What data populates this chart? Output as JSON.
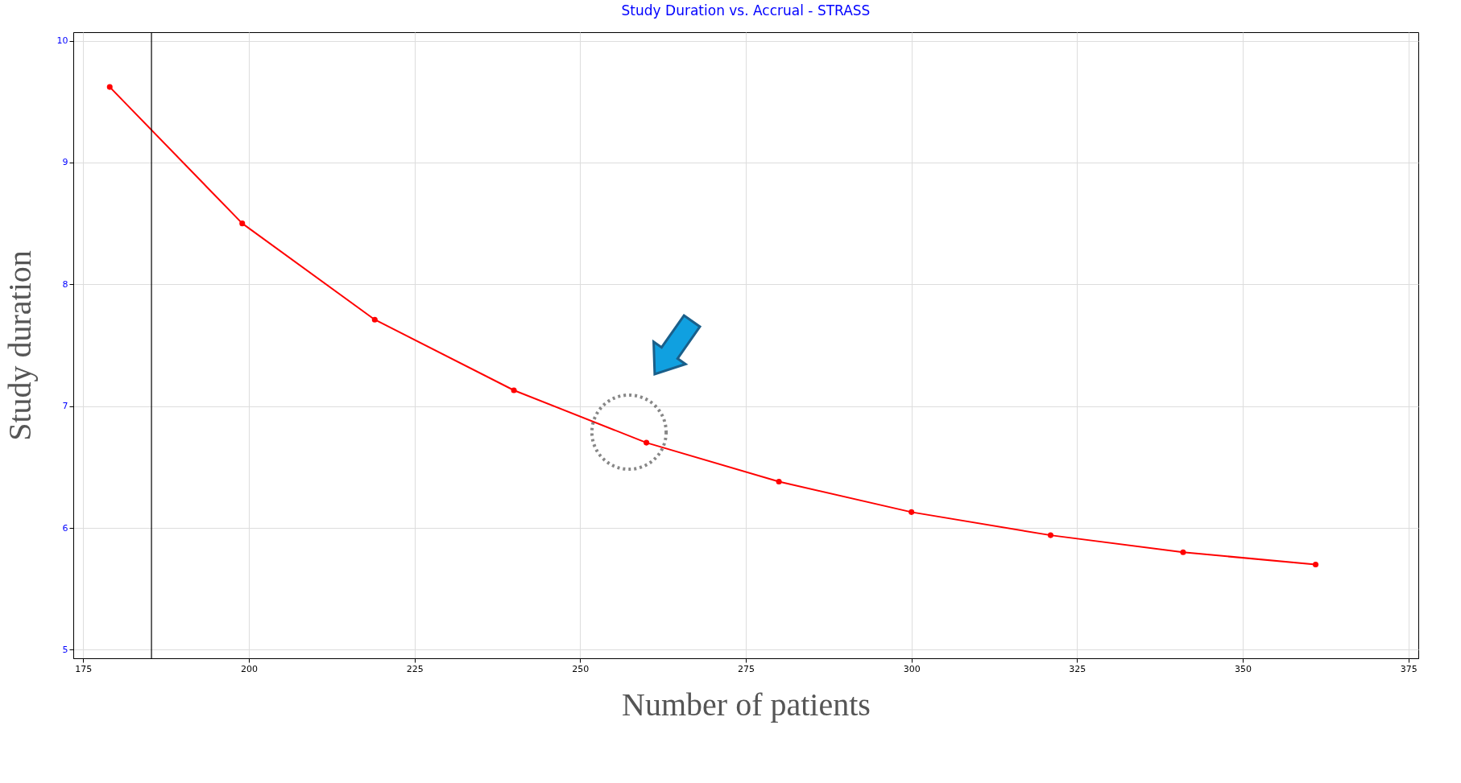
{
  "chart_data": {
    "type": "line",
    "title": "Study Duration vs. Accrual - STRASS",
    "xlabel": "Number of patients",
    "ylabel": "Study duration",
    "x": [
      179,
      199,
      219,
      240,
      260,
      280,
      300,
      321,
      341,
      361
    ],
    "series": [
      {
        "color": "#ff0000",
        "values": [
          9.62,
          8.5,
          7.71,
          7.13,
          6.7,
          6.38,
          6.13,
          5.94,
          5.8,
          5.7
        ]
      }
    ],
    "xlim": [
      173.5,
      376.5
    ],
    "xticks": [
      175,
      200,
      225,
      250,
      275,
      300,
      325,
      350,
      375
    ],
    "ylim": [
      4.93,
      10.07
    ],
    "yticks": [
      5,
      6,
      7,
      8,
      9,
      10
    ],
    "ref_lines": [
      {
        "axis": "x",
        "value": 185.3,
        "color": "#000000"
      }
    ],
    "grid": true,
    "marker": "circle",
    "line_style": "solid"
  }
}
